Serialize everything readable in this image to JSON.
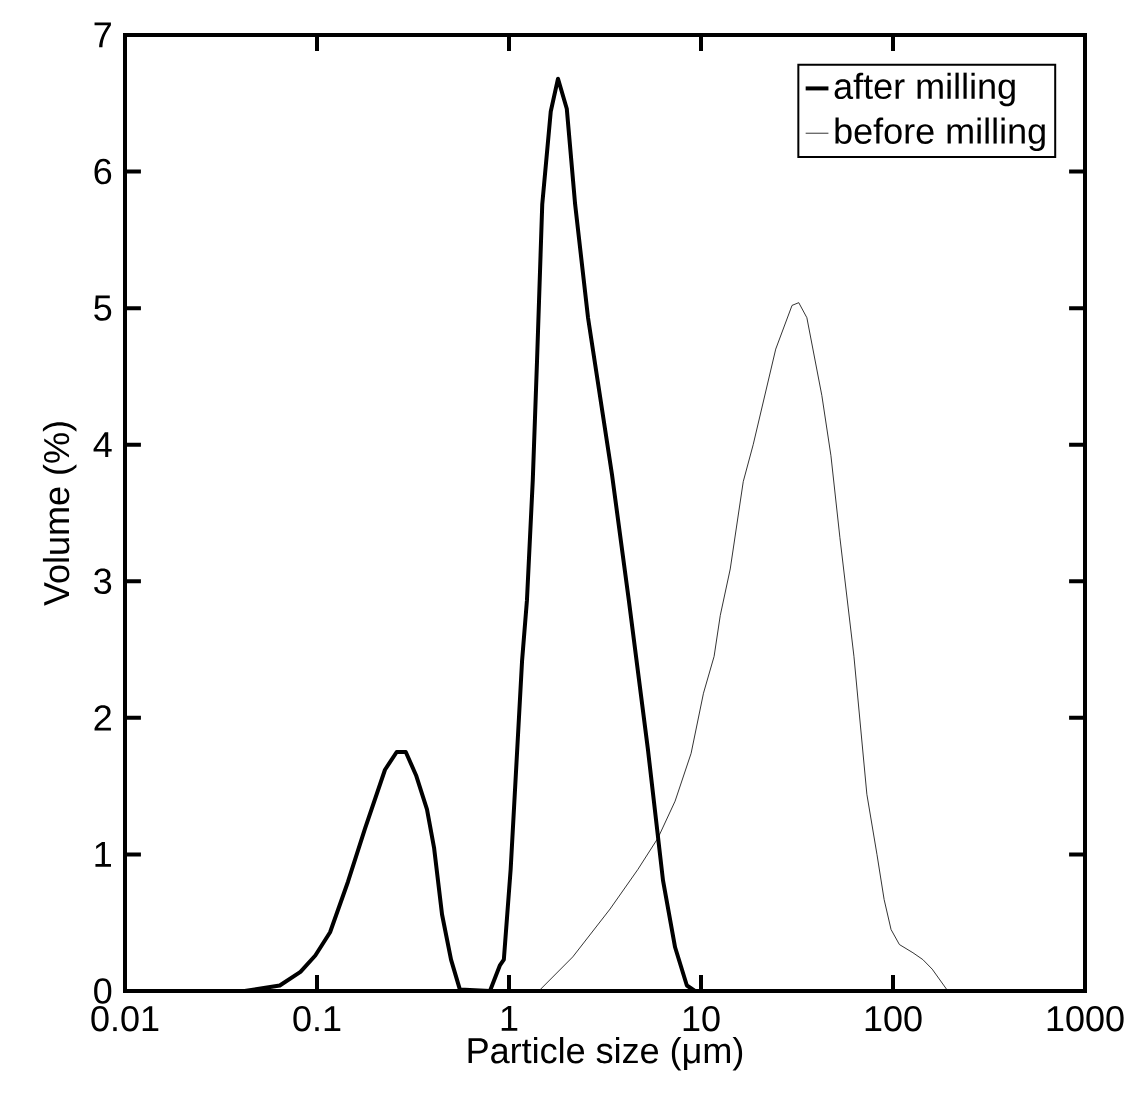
{
  "chart_data": {
    "type": "line",
    "xlabel": "Particle size (μm)",
    "ylabel": "Volume (%)",
    "log": "x",
    "xlim": [
      0.01,
      1000
    ],
    "xticks": [
      0.01,
      0.1,
      1,
      10,
      100,
      1000
    ],
    "ylim": [
      0,
      7
    ],
    "yticks": [
      0,
      1,
      2,
      3,
      4,
      5,
      6,
      7
    ],
    "grid": false,
    "legend": "top right",
    "marker": "none",
    "line_style": "solid",
    "series": [
      {
        "name": "after milling",
        "color": "#000000",
        "x": [
          0.042,
          0.064,
          0.082,
          0.098,
          0.117,
          0.145,
          0.178,
          0.226,
          0.26,
          0.29,
          0.328,
          0.374,
          0.407,
          0.448,
          0.499,
          0.555,
          0.796,
          0.898,
          0.94,
          1.02,
          1.17,
          1.24,
          1.33,
          1.4,
          1.49,
          1.65,
          1.8,
          2.0,
          2.21,
          2.58,
          3.44,
          4.21,
          5.29,
          6.34,
          7.33,
          8.44,
          9.3
        ],
        "values": [
          0,
          0.04,
          0.14,
          0.26,
          0.43,
          0.8,
          1.19,
          1.62,
          1.75,
          1.75,
          1.58,
          1.33,
          1.05,
          0.56,
          0.23,
          0.01,
          0,
          0.19,
          0.23,
          0.89,
          2.42,
          2.86,
          3.74,
          4.62,
          5.76,
          6.44,
          6.68,
          6.46,
          5.76,
          4.93,
          3.78,
          2.86,
          1.77,
          0.81,
          0.32,
          0.04,
          0
        ]
      },
      {
        "name": "before milling",
        "color": "#000000",
        "x": [
          1.43,
          2.15,
          3.36,
          4.69,
          5.97,
          7.33,
          8.88,
          10.3,
          11.7,
          12.6,
          14.2,
          16.6,
          18.7,
          24.5,
          29.8,
          32.3,
          35.6,
          42.6,
          47.5,
          52.9,
          62.6,
          73.1,
          82.5,
          89.9,
          97.7,
          108,
          127,
          143,
          160,
          193
        ],
        "values": [
          0,
          0.25,
          0.6,
          0.89,
          1.12,
          1.39,
          1.74,
          2.18,
          2.45,
          2.75,
          3.09,
          3.73,
          4.0,
          4.7,
          5.02,
          5.04,
          4.93,
          4.36,
          3.92,
          3.32,
          2.45,
          1.44,
          1.0,
          0.67,
          0.45,
          0.34,
          0.28,
          0.23,
          0.16,
          0
        ]
      }
    ]
  }
}
